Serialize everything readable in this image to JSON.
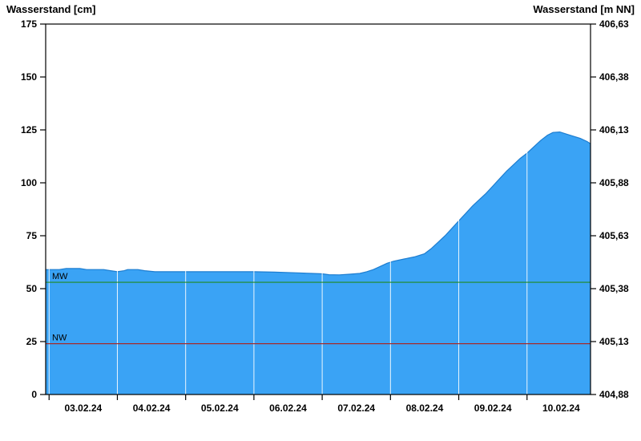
{
  "titles": {
    "left": "Wasserstand [cm]",
    "right": "Wasserstand [m NN]"
  },
  "chart_data": {
    "type": "area",
    "title": "",
    "x_unit": "days since 03.02.24 00:00",
    "x_range": [
      -0.05,
      7.93
    ],
    "grid_t": [
      0,
      1,
      2,
      3,
      4,
      5,
      6,
      7
    ],
    "label_t": [
      0.5,
      1.5,
      2.5,
      3.5,
      4.5,
      5.5,
      6.5,
      7.5
    ],
    "x_tick_labels": [
      "03.02.24",
      "04.02.24",
      "05.02.24",
      "06.02.24",
      "07.02.24",
      "08.02.24",
      "09.02.24",
      "10.02.24"
    ],
    "y_left": {
      "label": "Wasserstand [cm]",
      "range": [
        0,
        175
      ],
      "ticks": [
        0,
        25,
        50,
        75,
        100,
        125,
        150,
        175
      ]
    },
    "y_right": {
      "label": "Wasserstand [m NN]",
      "tick_labels": [
        "404,88",
        "405,13",
        "405,38",
        "405,63",
        "405,88",
        "406,13",
        "406,38",
        "406,63"
      ]
    },
    "series": [
      {
        "name": "Wasserstand",
        "points": [
          [
            -0.05,
            59
          ],
          [
            0.15,
            59
          ],
          [
            0.25,
            59.5
          ],
          [
            0.45,
            59.5
          ],
          [
            0.55,
            59
          ],
          [
            0.8,
            59
          ],
          [
            0.9,
            58.5
          ],
          [
            1.0,
            58
          ],
          [
            1.1,
            58.5
          ],
          [
            1.15,
            59
          ],
          [
            1.3,
            59
          ],
          [
            1.4,
            58.5
          ],
          [
            1.55,
            58
          ],
          [
            1.8,
            58
          ],
          [
            2.1,
            58
          ],
          [
            2.4,
            58
          ],
          [
            2.7,
            58
          ],
          [
            3.0,
            58
          ],
          [
            3.3,
            57.8
          ],
          [
            3.6,
            57.5
          ],
          [
            3.85,
            57.2
          ],
          [
            4.0,
            57
          ],
          [
            4.1,
            56.6
          ],
          [
            4.25,
            56.5
          ],
          [
            4.4,
            56.8
          ],
          [
            4.55,
            57.2
          ],
          [
            4.65,
            58
          ],
          [
            4.75,
            59
          ],
          [
            4.85,
            60.5
          ],
          [
            4.95,
            62
          ],
          [
            5.05,
            63
          ],
          [
            5.2,
            64
          ],
          [
            5.35,
            65
          ],
          [
            5.5,
            66.5
          ],
          [
            5.6,
            69
          ],
          [
            5.7,
            72
          ],
          [
            5.8,
            75
          ],
          [
            5.9,
            78.5
          ],
          [
            6.0,
            82
          ],
          [
            6.1,
            85.5
          ],
          [
            6.2,
            89
          ],
          [
            6.3,
            92
          ],
          [
            6.4,
            95
          ],
          [
            6.5,
            98.5
          ],
          [
            6.6,
            102
          ],
          [
            6.7,
            105.5
          ],
          [
            6.8,
            108.5
          ],
          [
            6.9,
            111.5
          ],
          [
            7.0,
            114
          ],
          [
            7.1,
            117
          ],
          [
            7.2,
            120
          ],
          [
            7.3,
            122.5
          ],
          [
            7.38,
            123.8
          ],
          [
            7.48,
            124
          ],
          [
            7.58,
            123
          ],
          [
            7.68,
            122
          ],
          [
            7.78,
            121
          ],
          [
            7.88,
            119.5
          ],
          [
            7.93,
            118.5
          ]
        ]
      }
    ],
    "reference_lines": [
      {
        "label": "MW",
        "value": 53,
        "color": "#228B22"
      },
      {
        "label": "NW",
        "value": 24,
        "color": "#A52A2A"
      }
    ],
    "colors": {
      "fill": "#3AA3F5",
      "stroke": "#1D7DD0",
      "grid": "#FFFFFF",
      "axis": "#000000"
    },
    "legend": "none",
    "grid": "vertical-day-lines"
  }
}
